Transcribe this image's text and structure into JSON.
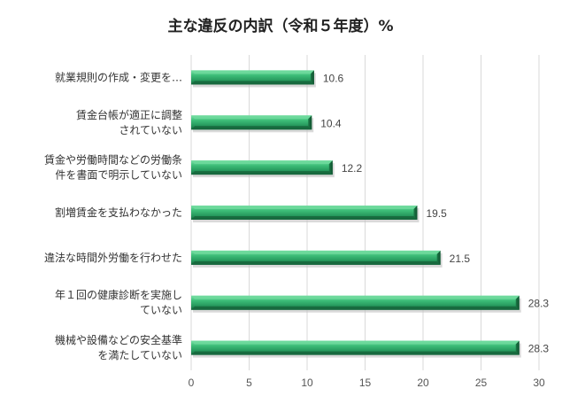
{
  "chart_data": {
    "type": "bar",
    "orientation": "horizontal",
    "title": "主な違反の内訳（令和５年度）%",
    "categories": [
      [
        "就業規則の作成・変更を…"
      ],
      [
        "賃金台帳が適正に調整",
        "されていない"
      ],
      [
        "賃金や労働時間などの労働条",
        "件を書面で明示していない"
      ],
      [
        "割増賃金を支払わなかった"
      ],
      [
        "違法な時間外労働を行わせた"
      ],
      [
        "年１回の健康診断を実施し",
        "ていない"
      ],
      [
        "機械や設備などの安全基準",
        "を満たしていない"
      ]
    ],
    "values": [
      10.6,
      10.4,
      12.2,
      19.5,
      21.5,
      28.3,
      28.3
    ],
    "value_labels": [
      "10.6",
      "10.4",
      "12.2",
      "19.5",
      "21.5",
      "28.3",
      "28.3"
    ],
    "xlim": [
      0,
      30
    ],
    "xticks": [
      0,
      5,
      10,
      15,
      20,
      25,
      30
    ],
    "xtick_labels": [
      "0",
      "5",
      "10",
      "15",
      "20",
      "25",
      "30"
    ],
    "xlabel": "",
    "ylabel": "",
    "grid": true,
    "legend": "none",
    "bar_color": "#2fa866",
    "bar_highlight": "#6fd99c",
    "bar_shadow": "#17683d"
  }
}
